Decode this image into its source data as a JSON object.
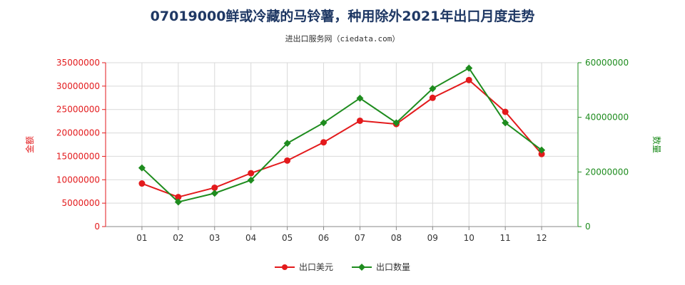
{
  "colors": {
    "amount": "#e31a1c",
    "quantity": "#1e8c1e",
    "axis": "#888888",
    "grid": "#d9d9d9",
    "title": "#1f3864"
  },
  "chart_data": {
    "type": "line",
    "title": "07019000鲜或冷藏的马铃薯，种用除外2021年出口月度走势",
    "subtitle": "进出口服务网（ciedata.com）",
    "categories": [
      "01",
      "02",
      "03",
      "04",
      "05",
      "06",
      "07",
      "08",
      "09",
      "10",
      "11",
      "12"
    ],
    "y_left": {
      "label": "金额",
      "min": 0,
      "max": 35000000,
      "ticks": [
        "0",
        "5000000",
        "10000000",
        "15000000",
        "20000000",
        "25000000",
        "30000000",
        "35000000"
      ],
      "tick_values": [
        0,
        5000000,
        10000000,
        15000000,
        20000000,
        25000000,
        30000000,
        35000000
      ]
    },
    "y_right": {
      "label": "数量",
      "min": 0,
      "max": 60000000,
      "ticks": [
        "0",
        "20000000",
        "40000000",
        "60000000"
      ],
      "tick_values": [
        0,
        20000000,
        40000000,
        60000000
      ]
    },
    "series": [
      {
        "name": "出口美元",
        "axis": "left",
        "values": [
          9200000,
          6300000,
          8300000,
          11400000,
          14100000,
          18000000,
          22600000,
          21900000,
          27500000,
          31300000,
          24500000,
          15500000
        ]
      },
      {
        "name": "出口数量",
        "axis": "right",
        "values": [
          21500000,
          9000000,
          12200000,
          17000000,
          30500000,
          38000000,
          47000000,
          38000000,
          50500000,
          58000000,
          38000000,
          28000000
        ]
      }
    ],
    "grid": true,
    "legend_position": "bottom-center"
  }
}
